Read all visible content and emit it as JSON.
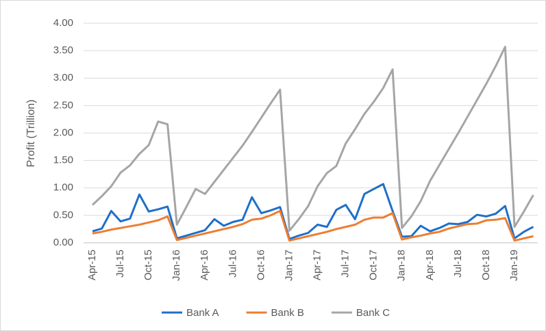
{
  "chart_data": {
    "type": "line",
    "y_label": "Profit (Trillion)",
    "categories": [
      "Apr-15",
      null,
      null,
      "Jul-15",
      null,
      null,
      "Oct-15",
      null,
      null,
      "Jan-16",
      null,
      null,
      "Apr-16",
      null,
      null,
      "Jul-16",
      null,
      null,
      "Oct-16",
      null,
      null,
      "Jan-17",
      null,
      null,
      "Apr-17",
      null,
      null,
      "Jul-17",
      null,
      null,
      "Oct-17",
      null,
      null,
      "Jan-18",
      null,
      null,
      "Apr-18",
      null,
      null,
      "Jul-18",
      null,
      null,
      "Oct-18",
      null,
      null,
      "Jan-19",
      null,
      null
    ],
    "series": [
      {
        "name": "Bank A",
        "color": "#1f6fc8",
        "values": [
          0.21,
          0.26,
          0.58,
          0.39,
          0.44,
          0.88,
          0.57,
          0.61,
          0.66,
          0.08,
          0.13,
          0.18,
          0.23,
          0.43,
          0.31,
          0.38,
          0.42,
          0.83,
          0.54,
          0.59,
          0.65,
          0.07,
          0.13,
          0.18,
          0.33,
          0.29,
          0.6,
          0.69,
          0.43,
          0.89,
          0.98,
          1.07,
          0.58,
          0.11,
          0.12,
          0.31,
          0.21,
          0.27,
          0.35,
          0.34,
          0.38,
          0.51,
          0.48,
          0.53,
          0.67,
          0.08,
          0.2,
          0.29
        ]
      },
      {
        "name": "Bank B",
        "color": "#ed7d31",
        "values": [
          0.17,
          0.2,
          0.24,
          0.27,
          0.3,
          0.33,
          0.37,
          0.41,
          0.48,
          0.05,
          0.09,
          0.13,
          0.17,
          0.21,
          0.25,
          0.29,
          0.34,
          0.42,
          0.44,
          0.5,
          0.58,
          0.04,
          0.08,
          0.12,
          0.16,
          0.2,
          0.25,
          0.29,
          0.33,
          0.42,
          0.46,
          0.46,
          0.54,
          0.06,
          0.1,
          0.13,
          0.17,
          0.2,
          0.26,
          0.3,
          0.34,
          0.35,
          0.41,
          0.42,
          0.45,
          0.04,
          0.08,
          0.12
        ]
      },
      {
        "name": "Bank C",
        "color": "#a5a5a5",
        "values": [
          0.69,
          0.85,
          1.03,
          1.28,
          1.41,
          1.62,
          1.78,
          2.21,
          2.16,
          0.33,
          0.65,
          0.98,
          0.89,
          1.11,
          1.33,
          1.55,
          1.77,
          2.02,
          2.28,
          2.54,
          2.79,
          0.22,
          0.43,
          0.67,
          1.03,
          1.27,
          1.4,
          1.81,
          2.07,
          2.35,
          2.57,
          2.82,
          3.16,
          0.27,
          0.48,
          0.76,
          1.13,
          1.42,
          1.71,
          2.0,
          2.3,
          2.6,
          2.9,
          3.22,
          3.57,
          0.29,
          0.57,
          0.87
        ]
      }
    ],
    "ylim": [
      0,
      4
    ],
    "yticks": [
      {
        "value": 0,
        "label": "0.00"
      },
      {
        "value": 0.5,
        "label": "0.50"
      },
      {
        "value": 1,
        "label": "1.00"
      },
      {
        "value": 1.5,
        "label": "1.50"
      },
      {
        "value": 2,
        "label": "2.00"
      },
      {
        "value": 2.5,
        "label": "2.50"
      },
      {
        "value": 3,
        "label": "3.00"
      },
      {
        "value": 3.5,
        "label": "3.50"
      },
      {
        "value": 4,
        "label": "4.00"
      }
    ],
    "grid": true,
    "legend": "bottom"
  }
}
